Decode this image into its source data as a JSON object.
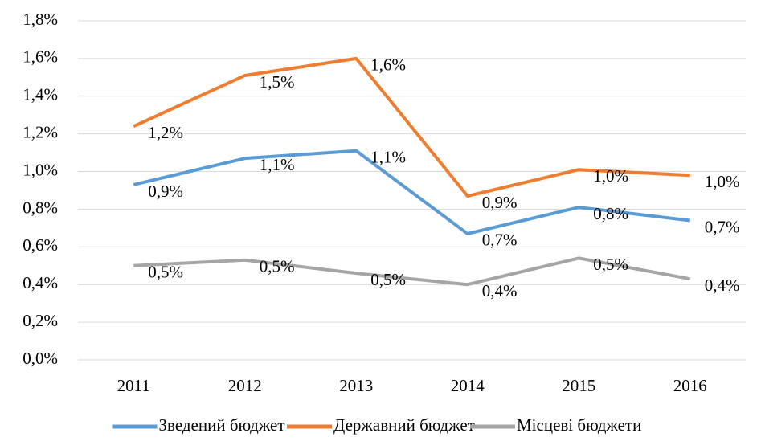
{
  "chart_data": {
    "type": "line",
    "categories": [
      "2011",
      "2012",
      "2013",
      "2014",
      "2015",
      "2016"
    ],
    "series": [
      {
        "name": "Зведений бюджет",
        "color": "#5b9bd5",
        "values": [
          0.93,
          1.07,
          1.11,
          0.67,
          0.81,
          0.74
        ],
        "value_labels": [
          "0,9%",
          "1,1%",
          "1,1%",
          "0,7%",
          "0,8%",
          "0,7%"
        ]
      },
      {
        "name": "Державний бюджет",
        "color": "#ed7d31",
        "values": [
          1.24,
          1.51,
          1.6,
          0.87,
          1.01,
          0.98
        ],
        "value_labels": [
          "1,2%",
          "1,5%",
          "1,6%",
          "0,9%",
          "1,0%",
          "1,0%"
        ]
      },
      {
        "name": "Місцеві бюджети",
        "color": "#a5a5a5",
        "values": [
          0.5,
          0.53,
          0.46,
          0.4,
          0.54,
          0.43
        ],
        "value_labels": [
          "0,5%",
          "0,5%",
          "0,5%",
          "0,4%",
          "0,5%",
          "0,4%"
        ]
      }
    ],
    "ylim": [
      0,
      1.8
    ],
    "yticks": [
      {
        "value": 0,
        "label": "0,0%"
      },
      {
        "value": 0.2,
        "label": "0,2%"
      },
      {
        "value": 0.4,
        "label": "0,4%"
      },
      {
        "value": 0.6,
        "label": "0,6%"
      },
      {
        "value": 0.8,
        "label": "0,8%"
      },
      {
        "value": 1.0,
        "label": "1,0%"
      },
      {
        "value": 1.2,
        "label": "1,2%"
      },
      {
        "value": 1.4,
        "label": "1,4%"
      },
      {
        "value": 1.6,
        "label": "1,6%"
      },
      {
        "value": 1.8,
        "label": "1,8%"
      }
    ],
    "grid": true,
    "legend": "bottom"
  }
}
